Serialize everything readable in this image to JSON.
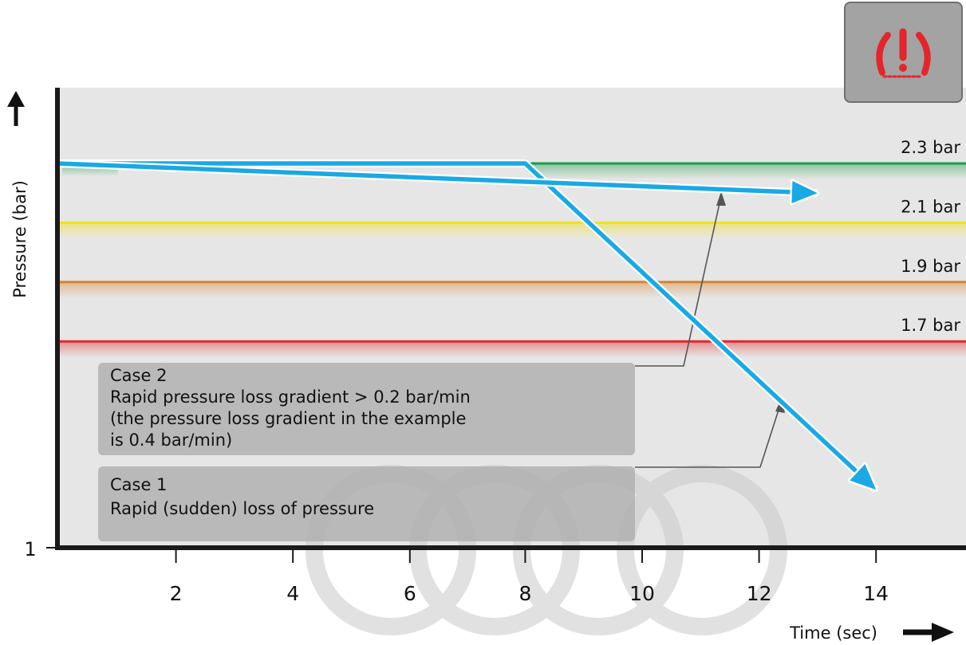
{
  "chart_data": {
    "type": "line",
    "title": "",
    "xlabel": "Time (sec)",
    "ylabel": "Pressure (bar)",
    "xlim": [
      0,
      15.4
    ],
    "x_ticks": [
      2,
      4,
      6,
      8,
      10,
      12,
      14
    ],
    "y_tick_labels": [
      {
        "value": 1,
        "label": "1"
      }
    ],
    "grid": false,
    "thresholds": [
      {
        "value": 2.3,
        "label": "2.3 bar",
        "color": "#1a9a4a"
      },
      {
        "value": 2.1,
        "label": "2.1 bar",
        "color": "#f2e21c"
      },
      {
        "value": 1.9,
        "label": "1.9 bar",
        "color": "#d9822b"
      },
      {
        "value": 1.7,
        "label": "1.7 bar",
        "color": "#e3262c"
      }
    ],
    "series": [
      {
        "case": "Case 1",
        "color": "#19a9e4",
        "points": [
          [
            0,
            2.3
          ],
          [
            8,
            2.3
          ],
          [
            14,
            1.2
          ]
        ]
      },
      {
        "case": "Case 2",
        "color": "#19a9e4",
        "points": [
          [
            0,
            2.3
          ],
          [
            13,
            2.2
          ]
        ]
      }
    ],
    "annotations": [
      {
        "id": "case2",
        "lines": [
          "Case 2",
          "Rapid pressure loss gradient > 0.2 bar/min",
          "(the pressure loss gradient in the example",
          "is 0.4 bar/min)"
        ]
      },
      {
        "id": "case1",
        "lines": [
          "Case 1",
          "Rapid (sudden) loss of pressure"
        ]
      }
    ]
  },
  "warning_icon": {
    "name": "tpms-warning-icon",
    "color": "#e3262c",
    "background": "#a3a3a3"
  },
  "colors": {
    "plot_background": "#e6e6e6",
    "axis": "#1a1a1a",
    "annotation_box": "#b0b0b0",
    "series": "#19a9e4"
  }
}
